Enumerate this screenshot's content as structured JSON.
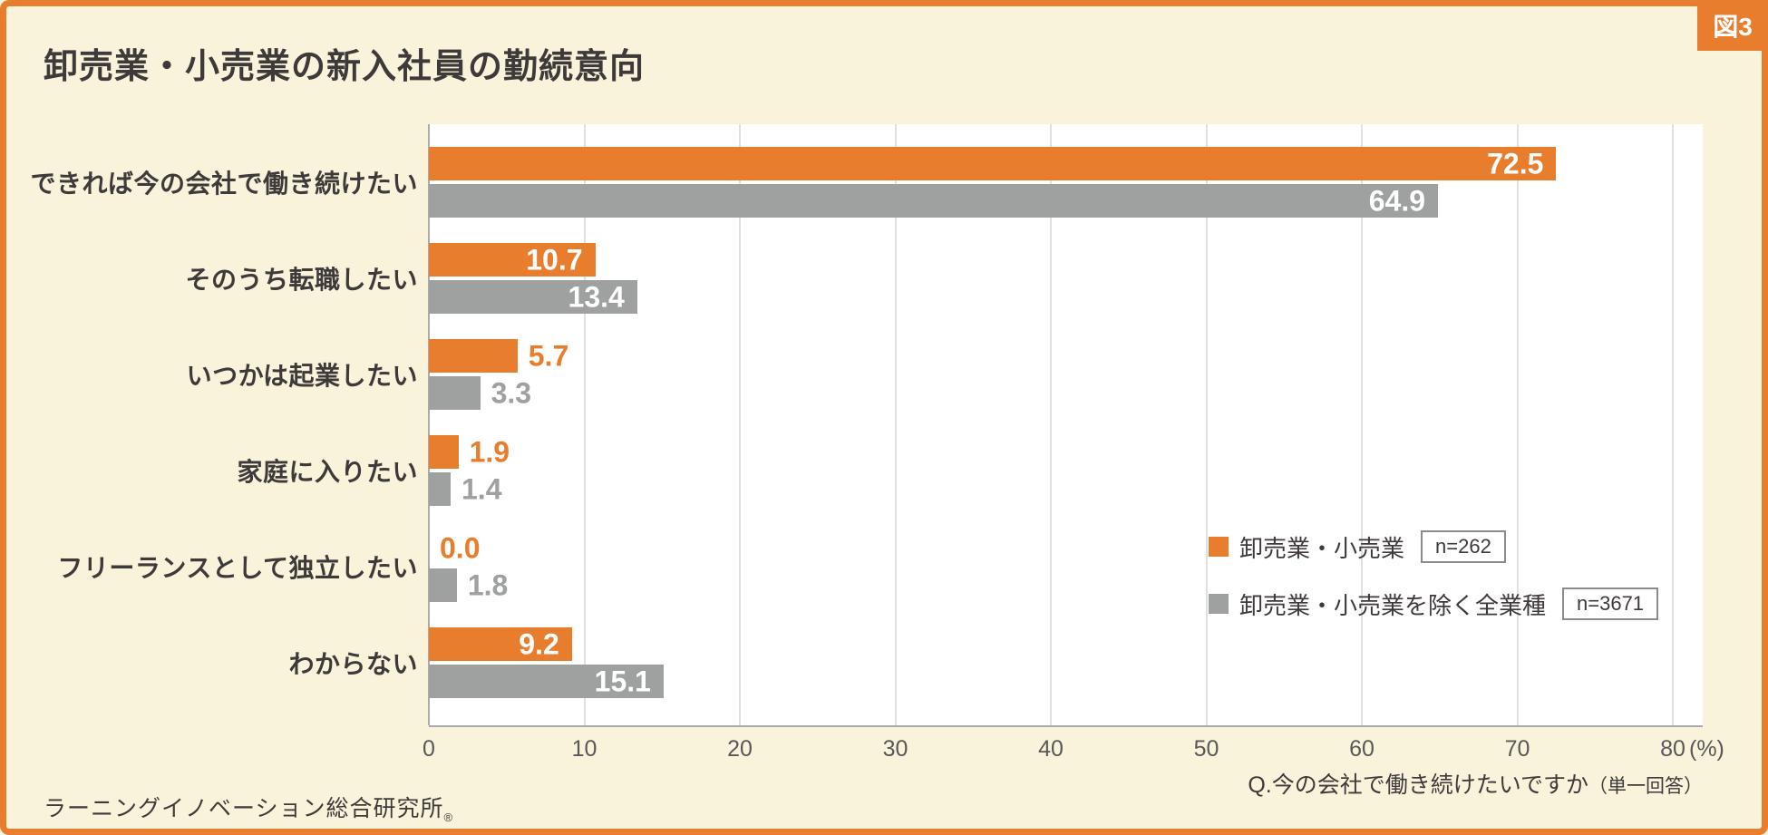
{
  "badge": {
    "label": "図3"
  },
  "title": "卸売業・小売業の新入社員の勤続意向",
  "colors": {
    "accent_orange": "#E87E2D",
    "bar_gray": "#9FA0A0",
    "background_cream": "#FAF3DC",
    "plot_background": "#FFFFFF",
    "text_dark": "#3E3A39"
  },
  "legend": [
    {
      "label": "卸売業・小売業",
      "n": "n=262",
      "color": "#E87E2D"
    },
    {
      "label": "卸売業・小売業を除く全業種",
      "n": "n=3671",
      "color": "#9FA0A0"
    }
  ],
  "footer": {
    "source": "ラーニングイノベーション総合研究所",
    "source_mark": "®",
    "question": "Q.今の会社で働き続けたいですか",
    "question_note": "（単一回答）"
  },
  "chart_data": {
    "type": "bar",
    "orientation": "horizontal",
    "title": "卸売業・小売業の新入社員の勤続意向",
    "categories": [
      "できれば今の会社で働き続けたい",
      "そのうち転職したい",
      "いつかは起業したい",
      "家庭に入りたい",
      "フリーランスとして独立したい",
      "わからない"
    ],
    "series": [
      {
        "name": "卸売業・小売業",
        "color": "#E87E2D",
        "n": 262,
        "values": [
          72.5,
          10.7,
          5.7,
          1.9,
          0.0,
          9.2
        ]
      },
      {
        "name": "卸売業・小売業を除く全業種",
        "color": "#9FA0A0",
        "n": 3671,
        "values": [
          64.9,
          13.4,
          3.3,
          1.4,
          1.8,
          15.1
        ]
      }
    ],
    "xlim": [
      0,
      80
    ],
    "xticks": [
      0,
      10,
      20,
      30,
      40,
      50,
      60,
      70,
      80
    ],
    "x_unit": "(%)",
    "grid": true,
    "value_label_decimals": 1
  }
}
